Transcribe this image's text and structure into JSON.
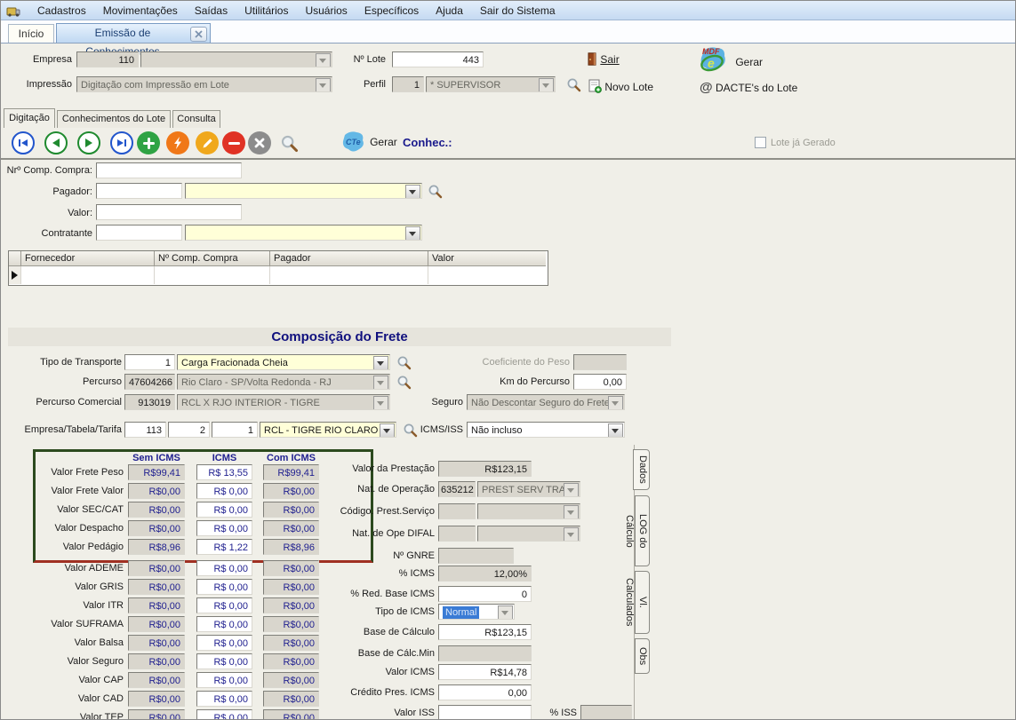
{
  "menubar": {
    "items": [
      {
        "label": "Cadastros"
      },
      {
        "label": "Movimentações"
      },
      {
        "label": "Saídas"
      },
      {
        "label": "Utilitários"
      },
      {
        "label": "Usuários"
      },
      {
        "label": "Específicos"
      },
      {
        "label": "Ajuda"
      },
      {
        "label": "Sair do Sistema"
      }
    ]
  },
  "window_tabs": {
    "inicio": "Início",
    "emissao": "Emissão de Conhecimentos"
  },
  "header": {
    "empresa_label": "Empresa",
    "empresa_code": "110",
    "empresa_desc": "",
    "impressao_label": "Impressão",
    "impressao_value": "Digitação com Impressão em Lote",
    "lote_label": "Nº Lote",
    "lote_value": "443",
    "perfil_label": "Perfil",
    "perfil_code": "1",
    "perfil_value": "* SUPERVISOR",
    "sair_label": "Sair",
    "novo_lote_label": "Novo Lote",
    "gerar_mdfe_label": "Gerar",
    "dactes_label": "DACTE's do Lote",
    "dactes_icon_glyph": "@",
    "mdfe_badge_top": "MDF",
    "mdfe_badge_e": "e"
  },
  "tabs": {
    "digitacao": "Digitação",
    "conhecimentos": "Conhecimentos do Lote",
    "consulta": "Consulta"
  },
  "toolbar": {
    "gerar_label": "Gerar",
    "conhec_label": "Conhec.:",
    "lote_gerado_label": "Lote já Gerado",
    "cte_badge": "CTe"
  },
  "entry": {
    "comp_compra_label": "Nrº Comp. Compra:",
    "comp_compra_value": "",
    "pagador_label": "Pagador:",
    "pagador_code": "",
    "pagador_desc": "",
    "valor_label": "Valor:",
    "valor_value": "",
    "contratante_label": "Contratante",
    "contratante_code": "",
    "contratante_desc": ""
  },
  "grid": {
    "columns": [
      "Fornecedor",
      "Nº Comp. Compra",
      "Pagador",
      "Valor"
    ]
  },
  "composicao": {
    "title": "Composição do Frete",
    "tipo_transporte_label": "Tipo de Transporte",
    "tipo_transporte_code": "1",
    "tipo_transporte_desc": "Carga Fracionada Cheia",
    "coeficiente_label": "Coeficiente do Peso",
    "coeficiente_value": "",
    "percurso_label": "Percurso",
    "percurso_code": "47604266",
    "percurso_desc": "Rio Claro - SP/Volta Redonda - RJ",
    "km_label": "Km do Percurso",
    "km_value": "0,00",
    "percurso_comercial_label": "Percurso Comercial",
    "percurso_comercial_code": "913019",
    "percurso_comercial_desc": "RCL X RJO INTERIOR - TIGRE",
    "seguro_label": "Seguro",
    "seguro_value": "Não Descontar Seguro do Frete P",
    "tarifa_label": "Empresa/Tabela/Tarifa",
    "tarifa_empresa": "113",
    "tarifa_tabela": "2",
    "tarifa_tarifa": "1",
    "tarifa_desc": "RCL - TIGRE RIO CLARO",
    "icms_iss_label": "ICMS/ISS",
    "icms_iss_value": "Não incluso"
  },
  "values_table": {
    "headers": [
      "Sem ICMS",
      "ICMS",
      "Com ICMS"
    ],
    "rows": [
      {
        "label": "Valor Frete Peso",
        "sem": "R$99,41",
        "icms": "R$ 13,55",
        "com": "R$99,41"
      },
      {
        "label": "Valor Frete Valor",
        "sem": "R$0,00",
        "icms": "R$ 0,00",
        "com": "R$0,00"
      },
      {
        "label": "Valor SEC/CAT",
        "sem": "R$0,00",
        "icms": "R$ 0,00",
        "com": "R$0,00"
      },
      {
        "label": "Valor Despacho",
        "sem": "R$0,00",
        "icms": "R$ 0,00",
        "com": "R$0,00"
      },
      {
        "label": "Valor Pedágio",
        "sem": "R$8,96",
        "icms": "R$ 1,22",
        "com": "R$8,96"
      },
      {
        "label": "Valor ADEME",
        "sem": "R$0,00",
        "icms": "R$ 0,00",
        "com": "R$0,00"
      },
      {
        "label": "Valor GRIS",
        "sem": "R$0,00",
        "icms": "R$ 0,00",
        "com": "R$0,00"
      },
      {
        "label": "Valor ITR",
        "sem": "R$0,00",
        "icms": "R$ 0,00",
        "com": "R$0,00"
      },
      {
        "label": "Valor SUFRAMA",
        "sem": "R$0,00",
        "icms": "R$ 0,00",
        "com": "R$0,00"
      },
      {
        "label": "Valor Balsa",
        "sem": "R$0,00",
        "icms": "R$ 0,00",
        "com": "R$0,00"
      },
      {
        "label": "Valor Seguro",
        "sem": "R$0,00",
        "icms": "R$ 0,00",
        "com": "R$0,00"
      },
      {
        "label": "Valor CAP",
        "sem": "R$0,00",
        "icms": "R$ 0,00",
        "com": "R$0,00"
      },
      {
        "label": "Valor CAD",
        "sem": "R$0,00",
        "icms": "R$ 0,00",
        "com": "R$0,00"
      },
      {
        "label": "Valor TEP",
        "sem": "R$0,00",
        "icms": "R$ 0,00",
        "com": "R$0,00"
      }
    ]
  },
  "right_panel": {
    "valor_prestacao_label": "Valor da Prestação",
    "valor_prestacao": "R$123,15",
    "nat_operacao_label": "Nat. de Operação",
    "nat_operacao_code": "635212",
    "nat_operacao_desc": "PREST SERV TRANSI",
    "codigo_prest_label": "Código. Prest.Serviço",
    "codigo_prest_code": "",
    "codigo_prest_desc": "",
    "nat_difal_label": "Nat. de Ope DIFAL",
    "nat_difal_code": "",
    "nat_difal_desc": "",
    "gnre_label": "Nº GNRE",
    "gnre_value": "",
    "perc_icms_label": "% ICMS",
    "perc_icms": "12,00%",
    "perc_red_label": "% Red. Base ICMS",
    "perc_red": "0",
    "tipo_icms_label": "Tipo de ICMS",
    "tipo_icms": "Normal",
    "base_calc_label": "Base de Cálculo",
    "base_calc": "R$123,15",
    "base_calc_min_label": "Base de Cálc.Min",
    "base_calc_min": "",
    "valor_icms_label": "Valor ICMS",
    "valor_icms": "R$14,78",
    "credito_label": "Crédito Pres. ICMS",
    "credito": "0,00",
    "valor_iss_label": "Valor ISS",
    "valor_iss": "",
    "perc_iss_label": "% ISS",
    "perc_iss": ""
  },
  "side_tabs": [
    "Dados",
    "LOG do Cálculo",
    "Vl. Calculados",
    "Obs"
  ],
  "colors": {
    "navy_value": "#1f1f8f",
    "title_navy": "#10107e",
    "yellow_field": "#ffffd8",
    "box_border_green": "#2c4a1e",
    "box_border_red": "#a03022",
    "menu_bg": "#cfe0f4",
    "toolbar_green": "#2fa344",
    "toolbar_orange": "#f07818",
    "toolbar_amber": "#f0a81c",
    "toolbar_red": "#e03224",
    "toolbar_gray": "#8c8c8c",
    "selection_blue": "#3a7bd5"
  }
}
